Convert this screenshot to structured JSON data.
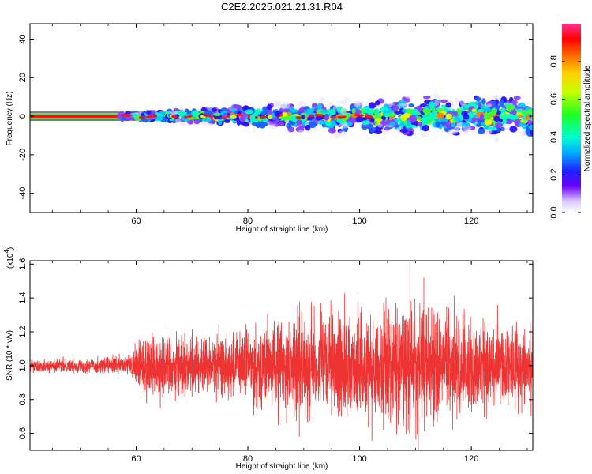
{
  "figure_title": "C2E2.2025.021.21.31.R04",
  "colors": {
    "snr_line": "#ee3333",
    "axis": "#000000",
    "background": "#ffffff"
  },
  "chart_data": [
    {
      "type": "heatmap",
      "xlabel": "Height of straight line (km)",
      "ylabel": "Frequency (Hz)",
      "xlim": [
        41,
        131
      ],
      "ylim": [
        -50,
        48
      ],
      "xticks": [
        60,
        80,
        100,
        120
      ],
      "yticks": [
        40,
        20,
        0,
        -20,
        -40
      ],
      "ytick_labels": [
        "40",
        "20",
        "0",
        "-20",
        "-40"
      ],
      "colorbar": {
        "label": "Normalized spectral amplitude",
        "range": [
          0,
          1
        ],
        "ticks": [
          0.0,
          0.2,
          0.4,
          0.6,
          0.8
        ],
        "tick_labels": [
          "0.0",
          "0.2",
          "0.4",
          "0.6",
          "0.8"
        ],
        "colormap": "rainbow"
      },
      "band": {
        "center_frequency_hz": 0,
        "uniform_segment_km": [
          41,
          57
        ],
        "spread_start_km": 57,
        "approx_half_width_hz": [
          1,
          8
        ]
      }
    },
    {
      "type": "line",
      "xlabel": "Height of straight line (km)",
      "ylabel": "SNR (10 * v/v)",
      "y_multiplier_label": "(x10",
      "y_multiplier_exp": "4",
      "y_multiplier_close": ")",
      "xlim": [
        41,
        131
      ],
      "ylim": [
        0.5,
        1.62
      ],
      "xticks": [
        60,
        80,
        100,
        120
      ],
      "yticks": [
        0.6,
        0.8,
        1.0,
        1.2,
        1.4,
        1.6
      ],
      "ytick_labels": [
        "0.6",
        "0.8",
        "1.0",
        "1.2",
        "1.4",
        "1.6"
      ],
      "series": [
        {
          "baseline": 1.0,
          "amplitude_envelope": [
            {
              "x": 41,
              "amp": 0.03
            },
            {
              "x": 55,
              "amp": 0.05
            },
            {
              "x": 59,
              "amp": 0.06
            },
            {
              "x": 61,
              "amp": 0.2
            },
            {
              "x": 75,
              "amp": 0.18
            },
            {
              "x": 88,
              "amp": 0.28
            },
            {
              "x": 95,
              "amp": 0.3
            },
            {
              "x": 110,
              "amp": 0.35
            },
            {
              "x": 120,
              "amp": 0.28
            },
            {
              "x": 131,
              "amp": 0.22
            }
          ],
          "notable_peaks": [
            {
              "x": 88.9,
              "y": 1.36
            },
            {
              "x": 109.0,
              "y": 1.62
            },
            {
              "x": 111.5,
              "y": 1.52
            },
            {
              "x": 89.2,
              "y": 0.58
            },
            {
              "x": 110.5,
              "y": 0.5
            }
          ]
        }
      ]
    }
  ]
}
